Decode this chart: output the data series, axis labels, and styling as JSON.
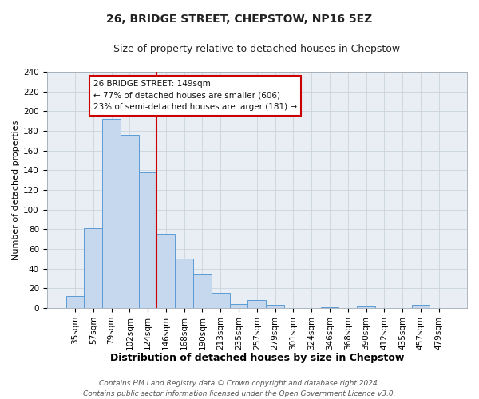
{
  "title": "26, BRIDGE STREET, CHEPSTOW, NP16 5EZ",
  "subtitle": "Size of property relative to detached houses in Chepstow",
  "xlabel": "Distribution of detached houses by size in Chepstow",
  "ylabel": "Number of detached properties",
  "bar_labels": [
    "35sqm",
    "57sqm",
    "79sqm",
    "102sqm",
    "124sqm",
    "146sqm",
    "168sqm",
    "190sqm",
    "213sqm",
    "235sqm",
    "257sqm",
    "279sqm",
    "301sqm",
    "324sqm",
    "346sqm",
    "368sqm",
    "390sqm",
    "412sqm",
    "435sqm",
    "457sqm",
    "479sqm"
  ],
  "bar_heights": [
    12,
    81,
    192,
    176,
    138,
    75,
    50,
    35,
    15,
    4,
    8,
    3,
    0,
    0,
    1,
    0,
    2,
    0,
    0,
    3,
    0
  ],
  "bar_color": "#c5d8ed",
  "bar_edge_color": "#5b9bd5",
  "vline_color": "#cc0000",
  "ylim": [
    0,
    240
  ],
  "yticks": [
    0,
    20,
    40,
    60,
    80,
    100,
    120,
    140,
    160,
    180,
    200,
    220,
    240
  ],
  "annotation_title": "26 BRIDGE STREET: 149sqm",
  "annotation_line1": "← 77% of detached houses are smaller (606)",
  "annotation_line2": "23% of semi-detached houses are larger (181) →",
  "annotation_box_color": "#ffffff",
  "annotation_box_edge": "#cc0000",
  "footer_line1": "Contains HM Land Registry data © Crown copyright and database right 2024.",
  "footer_line2": "Contains public sector information licensed under the Open Government Licence v3.0.",
  "background_color": "#ffffff",
  "plot_background": "#e8eef4",
  "grid_color": "#c8d4de",
  "title_fontsize": 10,
  "subtitle_fontsize": 9,
  "xlabel_fontsize": 9,
  "ylabel_fontsize": 8,
  "footer_fontsize": 6.5,
  "tick_fontsize": 7.5
}
